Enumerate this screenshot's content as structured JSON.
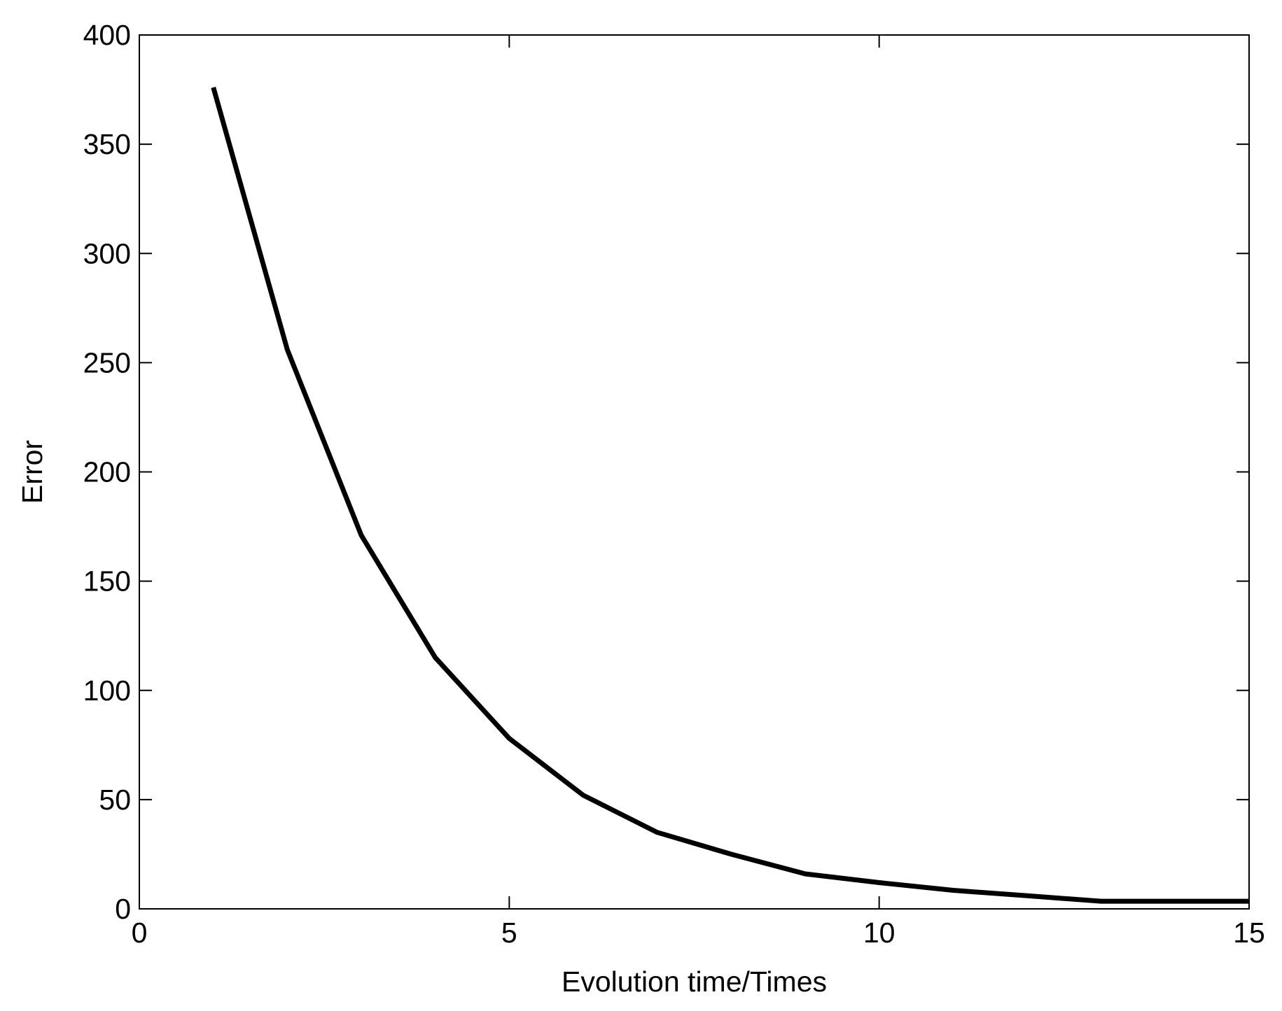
{
  "chart_data": {
    "type": "line",
    "title": "",
    "xlabel": "Evolution time/Times",
    "ylabel": "Error",
    "xlim": [
      0,
      15
    ],
    "ylim": [
      0,
      400
    ],
    "xticks": [
      "0",
      "5",
      "10",
      "15"
    ],
    "yticks": [
      "0",
      "50",
      "100",
      "150",
      "200",
      "250",
      "300",
      "350",
      "400"
    ],
    "grid": false,
    "box": true,
    "line_color": "#000000",
    "series": [
      {
        "x": [
          1,
          2,
          3,
          4,
          5,
          6,
          7,
          8,
          9,
          10,
          11,
          12,
          13,
          14,
          15
        ],
        "y": [
          376,
          256,
          171,
          115,
          78,
          52,
          35,
          25,
          16,
          12,
          8.5,
          6,
          3.5,
          3.5,
          3.5
        ]
      }
    ]
  }
}
